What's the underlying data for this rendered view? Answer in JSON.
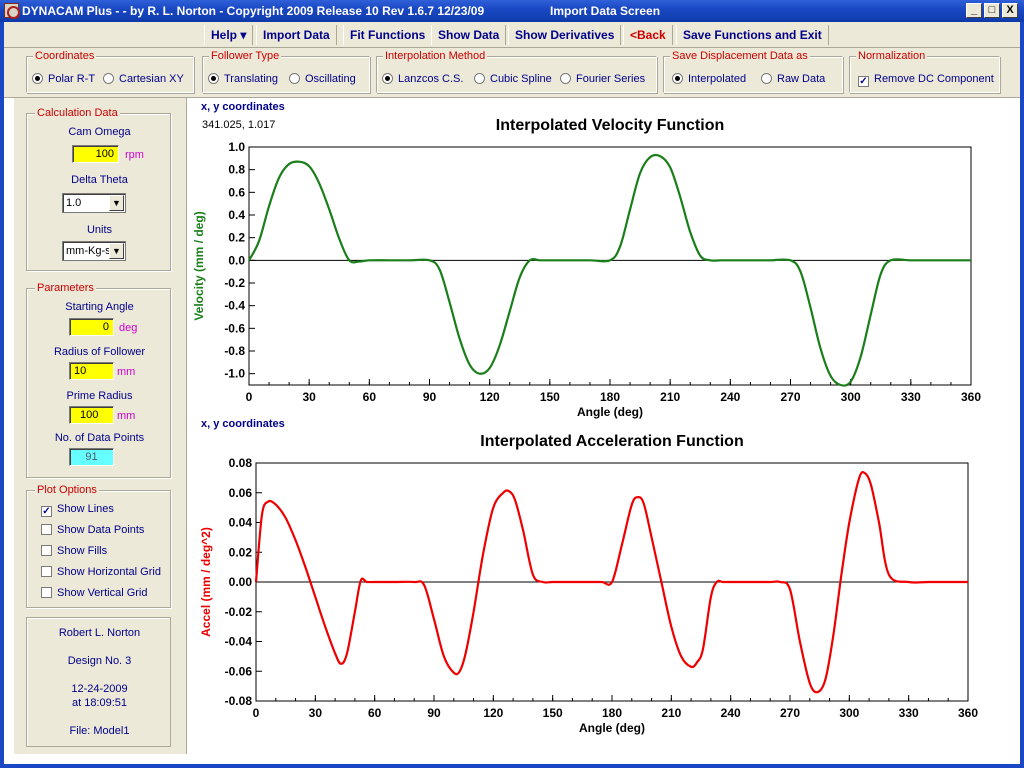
{
  "window": {
    "title": "DYNACAM Plus -  - by R. L. Norton - Copyright 2009 Release 10  Rev 1.6.7  12/23/09",
    "screen_name": "Import Data Screen",
    "minimize": "_",
    "maximize": "□",
    "close": "X"
  },
  "menu": {
    "help": "Help  ▾",
    "import_data": "Import Data",
    "fit_functions": "Fit Functions",
    "show_data": "Show Data",
    "show_derivatives": "Show Derivatives",
    "back": "<Back",
    "save_exit": "Save Functions and Exit"
  },
  "options": {
    "coordinates": {
      "legend": "Coordinates",
      "opt1": "Polar R-T",
      "opt2": "Cartesian XY",
      "selected": 1
    },
    "follower_type": {
      "legend": "Follower Type",
      "opt1": "Translating",
      "opt2": "Oscillating",
      "selected": 1
    },
    "interpolation": {
      "legend": "Interpolation Method",
      "opt1": "Lanzcos C.S.",
      "opt2": "Cubic Spline",
      "opt3": "Fourier Series",
      "selected": 1
    },
    "save_disp": {
      "legend": "Save Displacement Data as",
      "opt1": "Interpolated",
      "opt2": "Raw Data",
      "selected": 1
    },
    "normalization": {
      "legend": "Normalization",
      "checkbox": "Remove DC Component",
      "checked": true
    }
  },
  "calc": {
    "legend": "Calculation Data",
    "cam_omega_label": "Cam Omega",
    "cam_omega": "100",
    "cam_omega_unit": "rpm",
    "delta_theta_label": "Delta Theta",
    "delta_theta": "1.0",
    "units_label": "Units",
    "units": "mm-Kg-s"
  },
  "params": {
    "legend": "Parameters",
    "start_angle_label": "Starting Angle",
    "start_angle": "0",
    "start_angle_unit": "deg",
    "radius_follower_label": "Radius of Follower",
    "radius_follower": "10",
    "radius_follower_unit": "mm",
    "prime_radius_label": "Prime Radius",
    "prime_radius": "100",
    "prime_radius_unit": "mm",
    "num_points_label": "No. of Data Points",
    "num_points": "91"
  },
  "plot_options": {
    "legend": "Plot Options",
    "show_lines": "Show Lines",
    "show_data_points": "Show Data Points",
    "show_fills": "Show Fills",
    "show_hgrid": "Show Horizontal Grid",
    "show_vgrid": "Show Vertical Grid",
    "checked": [
      "show_lines"
    ]
  },
  "info": {
    "author": "Robert L. Norton",
    "design": "Design No. 3",
    "date": "12-24-2009",
    "time": "at 18:09:51",
    "file": "File: Model1"
  },
  "readout": {
    "coord_label_1": "x, y coordinates",
    "coord_value_1": "341.025, 1.017",
    "coord_label_2": "x, y  coordinates"
  },
  "chart_data": [
    {
      "type": "line",
      "title": "Interpolated Velocity Function",
      "xlabel": "Angle (deg)",
      "ylabel": "Velocity  (mm / deg)",
      "xlim": [
        0,
        360
      ],
      "ylim": [
        -1.1,
        1.0
      ],
      "xticks": [
        0,
        30,
        60,
        90,
        120,
        150,
        180,
        210,
        240,
        270,
        300,
        330,
        360
      ],
      "yticks": [
        1.0,
        0.8,
        0.6,
        0.4,
        0.2,
        0.0,
        -0.2,
        -0.4,
        -0.6,
        -0.8,
        -1.0
      ],
      "ytick_labels": [
        "1.0",
        "0.8",
        "0.6",
        "0.4",
        "0.2",
        "0.0",
        "-0.2",
        "-0.4",
        "-0.6",
        "-0.8",
        "-1.0"
      ],
      "color": "#1a7f1a",
      "zero_line": true,
      "series": [
        {
          "x": [
            0,
            5,
            10,
            15,
            20,
            25,
            30,
            35,
            40,
            45,
            50,
            55,
            60,
            70,
            80,
            90,
            95,
            100,
            105,
            110,
            115,
            120,
            125,
            130,
            135,
            140,
            145,
            150,
            160,
            170,
            180,
            185,
            190,
            195,
            200,
            205,
            210,
            215,
            220,
            225,
            230,
            235,
            240,
            250,
            260,
            270,
            275,
            280,
            285,
            290,
            295,
            300,
            305,
            310,
            315,
            320,
            330,
            340,
            350,
            360
          ],
          "y": [
            0.0,
            0.17,
            0.48,
            0.73,
            0.85,
            0.87,
            0.83,
            0.68,
            0.45,
            0.19,
            0.0,
            -0.01,
            0.0,
            0.0,
            0.0,
            0.0,
            -0.08,
            -0.37,
            -0.69,
            -0.92,
            -1.0,
            -0.95,
            -0.75,
            -0.45,
            -0.15,
            0.0,
            0.0,
            0.0,
            0.0,
            0.0,
            0.0,
            0.12,
            0.45,
            0.77,
            0.91,
            0.92,
            0.82,
            0.56,
            0.25,
            0.04,
            0.0,
            0.0,
            0.0,
            0.0,
            0.0,
            0.0,
            -0.1,
            -0.42,
            -0.78,
            -1.02,
            -1.1,
            -1.07,
            -0.85,
            -0.48,
            -0.12,
            0.0,
            0.0,
            0.0,
            0.0,
            0.0
          ]
        }
      ]
    },
    {
      "type": "line",
      "title": "Interpolated Acceleration Function",
      "xlabel": "Angle (deg)",
      "ylabel": "Accel  (mm / deg^2)",
      "xlim": [
        0,
        360
      ],
      "ylim": [
        -0.08,
        0.08
      ],
      "xticks": [
        0,
        30,
        60,
        90,
        120,
        150,
        180,
        210,
        240,
        270,
        300,
        330,
        360
      ],
      "yticks": [
        0.08,
        0.06,
        0.04,
        0.02,
        0.0,
        -0.02,
        -0.04,
        -0.06,
        -0.08
      ],
      "ytick_labels": [
        "0.08",
        "0.06",
        "0.04",
        "0.02",
        "0.00",
        "-0.02",
        "-0.04",
        "-0.06",
        "-0.08"
      ],
      "color": "#ee0000",
      "zero_line": true,
      "series": [
        {
          "x": [
            0,
            3,
            6,
            10,
            15,
            20,
            25,
            30,
            35,
            40,
            43,
            46,
            50,
            53,
            56,
            60,
            70,
            80,
            85,
            90,
            95,
            100,
            103,
            106,
            110,
            115,
            120,
            125,
            128,
            131,
            135,
            140,
            145,
            150,
            160,
            170,
            175,
            180,
            185,
            190,
            193,
            196,
            200,
            205,
            210,
            215,
            220,
            223,
            226,
            230,
            233,
            236,
            240,
            250,
            260,
            265,
            270,
            275,
            280,
            284,
            288,
            292,
            296,
            300,
            305,
            308,
            311,
            315,
            320,
            330,
            340,
            350,
            355,
            360
          ],
          "y": [
            0.0,
            0.045,
            0.054,
            0.052,
            0.043,
            0.028,
            0.01,
            -0.01,
            -0.03,
            -0.048,
            -0.055,
            -0.048,
            -0.02,
            0.001,
            0.0,
            0.0,
            0.0,
            0.0,
            -0.002,
            -0.025,
            -0.05,
            -0.061,
            -0.06,
            -0.048,
            -0.02,
            0.02,
            0.05,
            0.06,
            0.061,
            0.055,
            0.035,
            0.005,
            0.0,
            0.0,
            0.0,
            0.0,
            0.0,
            0.0,
            0.025,
            0.052,
            0.057,
            0.053,
            0.03,
            0.0,
            -0.03,
            -0.05,
            -0.057,
            -0.054,
            -0.045,
            -0.01,
            0.0,
            0.0,
            0.0,
            0.0,
            0.0,
            0.0,
            -0.005,
            -0.04,
            -0.068,
            -0.074,
            -0.065,
            -0.035,
            0.005,
            0.04,
            0.07,
            0.073,
            0.065,
            0.04,
            0.005,
            0.0,
            0.0,
            0.0,
            0.0,
            0.0
          ]
        }
      ]
    }
  ]
}
